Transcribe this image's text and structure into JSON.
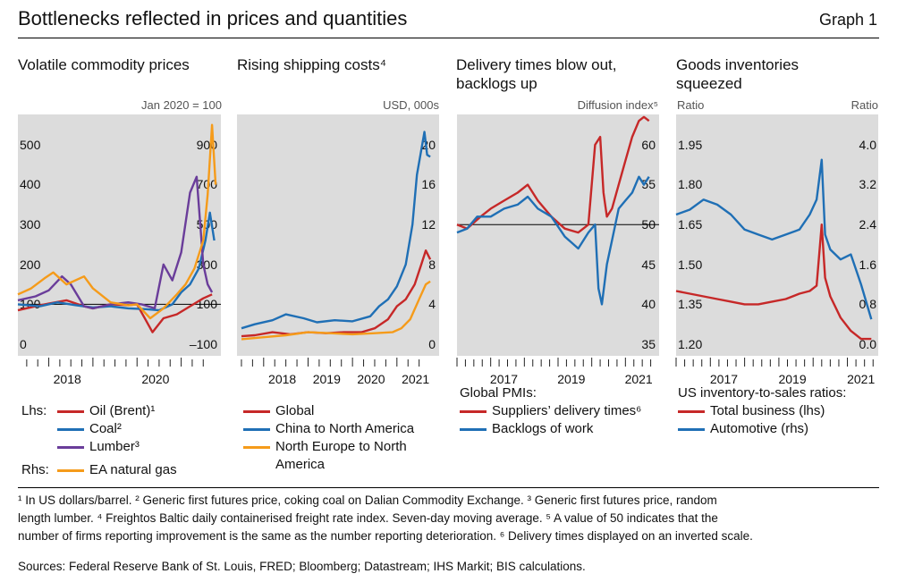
{
  "header": {
    "title": "Bottlenecks reflected in prices and quantities",
    "graph_label": "Graph 1"
  },
  "panels": [
    {
      "title": "Volatile commodity prices",
      "unit": "Jan 2020 = 100"
    },
    {
      "title": "Rising shipping costs⁴",
      "unit": "USD, 000s"
    },
    {
      "title": "Delivery times blow out, backlogs up",
      "unit": "Diffusion index⁵"
    },
    {
      "title": "Goods inventories squeezed",
      "unit_left": "Ratio",
      "unit_right": "Ratio"
    }
  ],
  "legends": {
    "p1": {
      "lhs_label": "Lhs:",
      "rhs_label": "Rhs:",
      "items": [
        {
          "text": "Oil (Brent)¹",
          "color": "#c62828"
        },
        {
          "text": "Coal²",
          "color": "#1f6fb5"
        },
        {
          "text": "Lumber³",
          "color": "#6a3d9a"
        },
        {
          "text": "EA natural gas",
          "color": "#f59b1a"
        }
      ]
    },
    "p2": {
      "items": [
        {
          "text": "Global",
          "color": "#c62828"
        },
        {
          "text": "China to North America",
          "color": "#1f6fb5"
        },
        {
          "text": "North Europe to North",
          "text2": "America",
          "color": "#f59b1a"
        }
      ]
    },
    "p3": {
      "heading": "Global PMIs:",
      "items": [
        {
          "text": "Suppliers’ delivery times⁶",
          "color": "#c62828"
        },
        {
          "text": "Backlogs of work",
          "color": "#1f6fb5"
        }
      ]
    },
    "p4": {
      "heading": "US inventory-to-sales ratios:",
      "items": [
        {
          "text": "Total business (lhs)",
          "color": "#c62828"
        },
        {
          "text": "Automotive (rhs)",
          "color": "#1f6fb5"
        }
      ]
    }
  },
  "footnotes": {
    "line1": "¹ In US dollars/barrel.  ² Generic first futures price, coking coal on Dalian Commodity Exchange.  ³ Generic first futures price, random",
    "line2": "length lumber.  ⁴ Freightos Baltic daily containerised freight rate index. Seven-day moving average.  ⁵ A value of 50 indicates that the",
    "line3": "number of firms reporting improvement is the same as the number reporting deterioration.  ⁶ Delivery times displayed on an inverted scale.",
    "sources": "Sources: Federal Reserve Bank of St. Louis, FRED; Bloomberg; Datastream; IHS Markit; BIS calculations."
  },
  "chart_data": [
    {
      "type": "line",
      "title": "Volatile commodity prices",
      "unit": "Jan 2020 = 100",
      "x_ticks": [
        "2018",
        "2020"
      ],
      "y_left": {
        "ticks": [
          "0",
          "100",
          "200",
          "300",
          "400",
          "500"
        ],
        "range": [
          0,
          600
        ]
      },
      "y_right": {
        "ticks": [
          "–100",
          "100",
          "300",
          "500",
          "700",
          "900"
        ],
        "range": [
          -100,
          1100
        ]
      },
      "reference_line_y": 100,
      "series": [
        {
          "name": "Oil (Brent)¹",
          "axis": "left",
          "color": "#c62828",
          "x": [
            2017.3,
            2017.7,
            2018.0,
            2018.4,
            2018.8,
            2019.0,
            2019.4,
            2019.8,
            2020.0,
            2020.2,
            2020.35,
            2020.6,
            2020.9,
            2021.2,
            2021.5,
            2021.7
          ],
          "y": [
            85,
            95,
            102,
            110,
            95,
            90,
            100,
            98,
            100,
            60,
            30,
            65,
            75,
            95,
            115,
            125
          ]
        },
        {
          "name": "Coal²",
          "axis": "left",
          "color": "#1f6fb5",
          "x": [
            2017.3,
            2017.8,
            2018.2,
            2018.6,
            2019.0,
            2019.4,
            2019.8,
            2020.2,
            2020.5,
            2020.8,
            2021.0,
            2021.2,
            2021.4,
            2021.55,
            2021.65,
            2021.75
          ],
          "y": [
            100,
            95,
            105,
            98,
            92,
            95,
            90,
            88,
            85,
            100,
            130,
            150,
            190,
            260,
            330,
            260
          ]
        },
        {
          "name": "Lumber³",
          "axis": "left",
          "color": "#6a3d9a",
          "x": [
            2017.3,
            2017.7,
            2018.0,
            2018.3,
            2018.5,
            2018.8,
            2019.0,
            2019.4,
            2019.8,
            2020.1,
            2020.4,
            2020.6,
            2020.8,
            2021.0,
            2021.2,
            2021.35,
            2021.5,
            2021.6,
            2021.7
          ],
          "y": [
            110,
            120,
            135,
            170,
            150,
            95,
            90,
            100,
            105,
            100,
            90,
            200,
            160,
            230,
            380,
            420,
            200,
            150,
            130
          ]
        },
        {
          "name": "EA natural gas",
          "axis": "right",
          "color": "#f59b1a",
          "x": [
            2017.3,
            2017.6,
            2017.9,
            2018.1,
            2018.4,
            2018.8,
            2019.0,
            2019.4,
            2019.8,
            2020.0,
            2020.3,
            2020.6,
            2020.9,
            2021.1,
            2021.3,
            2021.5,
            2021.6,
            2021.7,
            2021.78
          ],
          "y": [
            150,
            180,
            230,
            260,
            200,
            240,
            180,
            110,
            95,
            100,
            30,
            80,
            150,
            200,
            280,
            420,
            650,
            1000,
            700
          ]
        }
      ]
    },
    {
      "type": "line",
      "title": "Rising shipping costs",
      "unit": "USD, 000s",
      "x_ticks": [
        "2018",
        "2019",
        "2020",
        "2021"
      ],
      "y_right": {
        "ticks": [
          "0",
          "4",
          "8",
          "12",
          "16",
          "20"
        ],
        "range": [
          0,
          21.5
        ]
      },
      "series": [
        {
          "name": "Global",
          "color": "#c62828",
          "x": [
            2017.5,
            2017.8,
            2018.2,
            2018.6,
            2019.0,
            2019.4,
            2019.8,
            2020.2,
            2020.5,
            2020.8,
            2021.0,
            2021.2,
            2021.4,
            2021.55,
            2021.65,
            2021.75
          ],
          "y": [
            0.8,
            0.9,
            1.2,
            1.0,
            1.2,
            1.1,
            1.2,
            1.2,
            1.6,
            2.5,
            3.8,
            4.5,
            6.0,
            8.0,
            9.4,
            8.5
          ]
        },
        {
          "name": "China to North America",
          "color": "#1f6fb5",
          "x": [
            2017.5,
            2017.8,
            2018.2,
            2018.5,
            2018.9,
            2019.2,
            2019.6,
            2020.0,
            2020.4,
            2020.6,
            2020.8,
            2021.0,
            2021.2,
            2021.35,
            2021.45,
            2021.55,
            2021.62,
            2021.68,
            2021.75
          ],
          "y": [
            1.6,
            2.0,
            2.4,
            3.0,
            2.6,
            2.2,
            2.4,
            2.3,
            2.8,
            3.8,
            4.5,
            5.8,
            8.0,
            12.0,
            17.0,
            19.5,
            21.3,
            19.0,
            18.8
          ]
        },
        {
          "name": "North Europe to North America",
          "color": "#f59b1a",
          "x": [
            2017.5,
            2018.0,
            2018.5,
            2019.0,
            2019.5,
            2020.0,
            2020.5,
            2020.9,
            2021.1,
            2021.3,
            2021.5,
            2021.65,
            2021.75
          ],
          "y": [
            0.5,
            0.7,
            0.9,
            1.2,
            1.1,
            1.0,
            1.1,
            1.2,
            1.6,
            2.5,
            4.5,
            6.0,
            6.3
          ]
        }
      ]
    },
    {
      "type": "line",
      "title": "Delivery times blow out, backlogs up",
      "unit": "Diffusion index⁵",
      "x_ticks": [
        "2017",
        "2019",
        "2021"
      ],
      "y_right": {
        "ticks": [
          "35",
          "40",
          "45",
          "50",
          "55",
          "60"
        ],
        "range": [
          35,
          64
        ]
      },
      "reference_line_y": 50,
      "series": [
        {
          "name": "Suppliers’ delivery times⁶",
          "color": "#c62828",
          "x": [
            2016.0,
            2016.3,
            2016.7,
            2017.0,
            2017.4,
            2017.8,
            2018.1,
            2018.4,
            2018.8,
            2019.2,
            2019.6,
            2019.9,
            2020.1,
            2020.25,
            2020.35,
            2020.45,
            2020.6,
            2020.8,
            2021.0,
            2021.2,
            2021.4,
            2021.55,
            2021.7
          ],
          "y": [
            50,
            49.5,
            51,
            52,
            53,
            54,
            55,
            53,
            51,
            49.5,
            49,
            50,
            60,
            61,
            54,
            51,
            52,
            55,
            58,
            61,
            63,
            63.5,
            63
          ]
        },
        {
          "name": "Backlogs of work",
          "color": "#1f6fb5",
          "x": [
            2016.0,
            2016.3,
            2016.6,
            2017.0,
            2017.4,
            2017.8,
            2018.1,
            2018.4,
            2018.8,
            2019.2,
            2019.6,
            2019.9,
            2020.1,
            2020.2,
            2020.3,
            2020.45,
            2020.6,
            2020.8,
            2021.0,
            2021.2,
            2021.4,
            2021.55,
            2021.7
          ],
          "y": [
            49,
            49.5,
            51,
            51,
            52,
            52.5,
            53.5,
            52,
            51,
            48.5,
            47,
            49,
            50,
            42,
            40,
            45,
            48,
            52,
            53,
            54,
            56,
            55,
            56
          ]
        }
      ]
    },
    {
      "type": "line",
      "title": "Goods inventories squeezed",
      "unit_left": "Ratio",
      "unit_right": "Ratio",
      "x_ticks": [
        "2017",
        "2019",
        "2021"
      ],
      "y_left": {
        "ticks": [
          "1.20",
          "1.35",
          "1.50",
          "1.65",
          "1.80",
          "1.95"
        ],
        "range": [
          1.2,
          2.0
        ]
      },
      "y_right": {
        "ticks": [
          "0.0",
          "0.8",
          "1.6",
          "2.4",
          "3.2",
          "4.0"
        ],
        "range": [
          0.0,
          4.3
        ]
      },
      "series": [
        {
          "name": "Total business (lhs)",
          "axis": "left",
          "color": "#c62828",
          "x": [
            2016.0,
            2016.4,
            2016.8,
            2017.2,
            2017.6,
            2018.0,
            2018.4,
            2018.8,
            2019.2,
            2019.6,
            2019.9,
            2020.1,
            2020.25,
            2020.35,
            2020.5,
            2020.8,
            2021.1,
            2021.4,
            2021.7
          ],
          "y": [
            1.4,
            1.39,
            1.38,
            1.37,
            1.36,
            1.35,
            1.35,
            1.36,
            1.37,
            1.39,
            1.4,
            1.42,
            1.65,
            1.45,
            1.38,
            1.3,
            1.25,
            1.22,
            1.22
          ]
        },
        {
          "name": "Automotive (rhs)",
          "axis": "right",
          "color": "#1f6fb5",
          "x": [
            2016.0,
            2016.4,
            2016.8,
            2017.2,
            2017.6,
            2018.0,
            2018.4,
            2018.8,
            2019.2,
            2019.6,
            2019.9,
            2020.1,
            2020.25,
            2020.35,
            2020.5,
            2020.8,
            2021.1,
            2021.4,
            2021.7
          ],
          "y": [
            2.6,
            2.7,
            2.9,
            2.8,
            2.6,
            2.3,
            2.2,
            2.1,
            2.2,
            2.3,
            2.6,
            2.9,
            3.7,
            2.2,
            1.9,
            1.7,
            1.8,
            1.2,
            0.5
          ]
        }
      ]
    }
  ]
}
